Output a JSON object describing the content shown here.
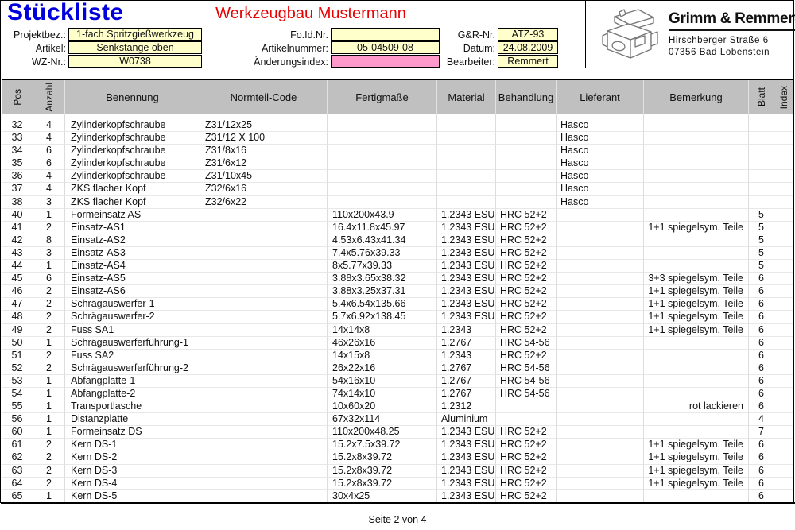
{
  "page": {
    "doc_title": "Stückliste",
    "company_title": "Werkzeugbau Mustermann",
    "footer": "Seite 2 von 4"
  },
  "logo": {
    "name": "Grimm & Remmert",
    "address_line1": "Hirschberger Straße 6",
    "address_line2": "07356 Bad Lobenstein"
  },
  "fields": {
    "left": [
      {
        "label": "Projektbez.:",
        "value": "1-fach Spritzgießwerkzeug"
      },
      {
        "label": "Artikel:",
        "value": "Senkstange oben"
      },
      {
        "label": "WZ-Nr.:",
        "value": "W0738"
      }
    ],
    "middle": [
      {
        "label": "Fo.Id.Nr.",
        "value": ""
      },
      {
        "label": "Artikelnummer:",
        "value": "05-04509-08"
      },
      {
        "label": "Änderungsindex:",
        "value": ""
      }
    ],
    "right": [
      {
        "label": "G&R-Nr.",
        "value": "ATZ-93"
      },
      {
        "label": "Datum:",
        "value": "24.08.2009"
      },
      {
        "label": "Bearbeiter:",
        "value": "Remmert"
      }
    ]
  },
  "colors": {
    "title_blue": "#0000dd",
    "title_red": "#e60000",
    "field_yellow": "#ffffcc",
    "field_pink": "#ff99cc",
    "table_header_gray": "#c0c0c0"
  },
  "table": {
    "columns": [
      "Pos",
      "Anzahl",
      "Benennung",
      "Normteil-Code",
      "Fertigmaße",
      "Material",
      "Behandlung",
      "Lieferant",
      "Bemerkung",
      "Blatt",
      "Index"
    ],
    "col_keys": [
      "pos",
      "anzahl",
      "benennung",
      "normteil-code",
      "fertigmasse",
      "material",
      "behandlung",
      "lieferant",
      "bemerkung",
      "blatt",
      "index"
    ],
    "rows": [
      [
        "32",
        "4",
        "Zylinderkopfschraube",
        "Z31/12x25",
        "",
        "",
        "",
        "Hasco",
        "",
        "",
        ""
      ],
      [
        "33",
        "4",
        "Zylinderkopfschraube",
        "Z31/12 X 100",
        "",
        "",
        "",
        "Hasco",
        "",
        "",
        ""
      ],
      [
        "34",
        "6",
        "Zylinderkopfschraube",
        "Z31/8x16",
        "",
        "",
        "",
        "Hasco",
        "",
        "",
        ""
      ],
      [
        "35",
        "6",
        "Zylinderkopfschraube",
        "Z31/6x12",
        "",
        "",
        "",
        "Hasco",
        "",
        "",
        ""
      ],
      [
        "36",
        "4",
        "Zylinderkopfschraube",
        "Z31/10x45",
        "",
        "",
        "",
        "Hasco",
        "",
        "",
        ""
      ],
      [
        "37",
        "4",
        "ZKS flacher Kopf",
        "Z32/6x16",
        "",
        "",
        "",
        "Hasco",
        "",
        "",
        ""
      ],
      [
        "38",
        "3",
        "ZKS flacher Kopf",
        "Z32/6x22",
        "",
        "",
        "",
        "Hasco",
        "",
        "",
        ""
      ],
      [
        "40",
        "1",
        "Formeinsatz AS",
        "",
        "110x200x43.9",
        "1.2343 ESU",
        "HRC 52+2",
        "",
        "",
        "5",
        ""
      ],
      [
        "41",
        "2",
        "Einsatz-AS1",
        "",
        "16.4x11.8x45.97",
        "1.2343 ESU",
        "HRC 52+2",
        "",
        "1+1 spiegelsym. Teile",
        "5",
        ""
      ],
      [
        "42",
        "8",
        "Einsatz-AS2",
        "",
        "4.53x6.43x41.34",
        "1.2343 ESU",
        "HRC 52+2",
        "",
        "",
        "5",
        ""
      ],
      [
        "43",
        "3",
        "Einsatz-AS3",
        "",
        "7.4x5.76x39.33",
        "1.2343 ESU",
        "HRC 52+2",
        "",
        "",
        "5",
        ""
      ],
      [
        "44",
        "1",
        "Einsatz-AS4",
        "",
        "8x5.77x39.33",
        "1.2343 ESU",
        "HRC 52+2",
        "",
        "",
        "5",
        ""
      ],
      [
        "45",
        "6",
        "Einsatz-AS5",
        "",
        "3.88x3.65x38.32",
        "1.2343 ESU",
        "HRC 52+2",
        "",
        "3+3 spiegelsym. Teile",
        "6",
        ""
      ],
      [
        "46",
        "2",
        "Einsatz-AS6",
        "",
        "3.88x3.25x37.31",
        "1.2343 ESU",
        "HRC 52+2",
        "",
        "1+1 spiegelsym. Teile",
        "6",
        ""
      ],
      [
        "47",
        "2",
        "Schrägauswerfer-1",
        "",
        "5.4x6.54x135.66",
        "1.2343 ESU",
        "HRC 52+2",
        "",
        "1+1 spiegelsym. Teile",
        "6",
        ""
      ],
      [
        "48",
        "2",
        "Schrägauswerfer-2",
        "",
        "5.7x6.92x138.45",
        "1.2343 ESU",
        "HRC 52+2",
        "",
        "1+1 spiegelsym. Teile",
        "6",
        ""
      ],
      [
        "49",
        "2",
        "Fuss SA1",
        "",
        "14x14x8",
        "1.2343",
        "HRC 52+2",
        "",
        "1+1 spiegelsym. Teile",
        "6",
        ""
      ],
      [
        "50",
        "1",
        "Schrägauswerferführung-1",
        "",
        "46x26x16",
        "1.2767",
        "HRC 54-56",
        "",
        "",
        "6",
        ""
      ],
      [
        "51",
        "2",
        "Fuss SA2",
        "",
        "14x15x8",
        "1.2343",
        "HRC 52+2",
        "",
        "",
        "6",
        ""
      ],
      [
        "52",
        "2",
        "Schrägauswerferführung-2",
        "",
        "26x22x16",
        "1.2767",
        "HRC 54-56",
        "",
        "",
        "6",
        ""
      ],
      [
        "53",
        "1",
        "Abfangplatte-1",
        "",
        "54x16x10",
        "1.2767",
        "HRC 54-56",
        "",
        "",
        "6",
        ""
      ],
      [
        "54",
        "1",
        "Abfangplatte-2",
        "",
        "74x14x10",
        "1.2767",
        "HRC 54-56",
        "",
        "",
        "6",
        ""
      ],
      [
        "55",
        "1",
        "Transportlasche",
        "",
        "10x60x20",
        "1.2312",
        "",
        "",
        "rot lackieren",
        "6",
        ""
      ],
      [
        "56",
        "1",
        "Distanzplatte",
        "",
        "67x32x114",
        "Aluminium",
        "",
        "",
        "",
        "4",
        ""
      ],
      [
        "60",
        "1",
        "Formeinsatz DS",
        "",
        "110x200x48.25",
        "1.2343 ESU",
        "HRC 52+2",
        "",
        "",
        "7",
        ""
      ],
      [
        "61",
        "2",
        "Kern DS-1",
        "",
        "15.2x7.5x39.72",
        "1.2343 ESU",
        "HRC 52+2",
        "",
        "1+1 spiegelsym. Teile",
        "6",
        ""
      ],
      [
        "62",
        "2",
        "Kern DS-2",
        "",
        "15.2x8x39.72",
        "1.2343 ESU",
        "HRC 52+2",
        "",
        "1+1 spiegelsym. Teile",
        "6",
        ""
      ],
      [
        "63",
        "2",
        "Kern DS-3",
        "",
        "15.2x8x39.72",
        "1.2343 ESU",
        "HRC 52+2",
        "",
        "1+1 spiegelsym. Teile",
        "6",
        ""
      ],
      [
        "64",
        "2",
        "Kern DS-4",
        "",
        "15.2x8x39.72",
        "1.2343 ESU",
        "HRC 52+2",
        "",
        "1+1 spiegelsym. Teile",
        "6",
        ""
      ],
      [
        "65",
        "1",
        "Kern DS-5",
        "",
        "30x4x25",
        "1.2343 ESU",
        "HRC 52+2",
        "",
        "",
        "6",
        ""
      ]
    ]
  }
}
